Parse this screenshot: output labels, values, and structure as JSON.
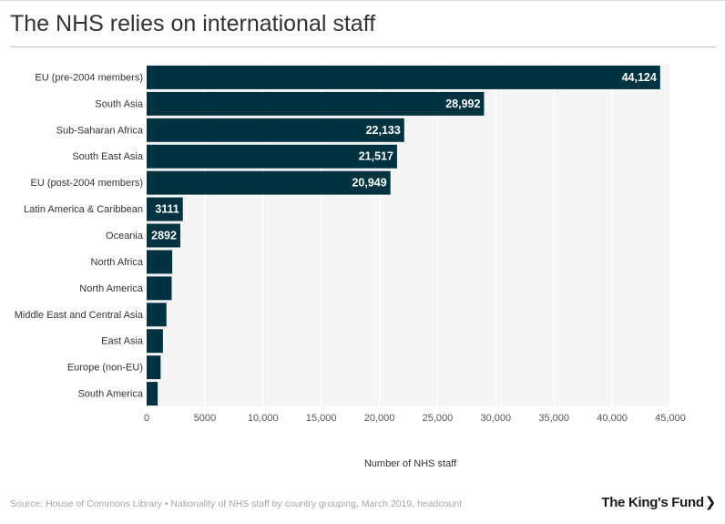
{
  "title": "The NHS relies on international staff",
  "footer": {
    "source": "Source: House of Commons Library • Nationality of NHS staff by country grouping, March 2019, headcount"
  },
  "logo": {
    "text": "The King's Fund",
    "chevron": "❯"
  },
  "colors": {
    "bar": "#00333f",
    "plot_bg": "#f5f5f5",
    "grid": "#ffffff",
    "label_text": "#ffffff"
  },
  "chart_data": {
    "type": "bar",
    "orientation": "horizontal",
    "categories": [
      "EU (pre-2004 members)",
      "South Asia",
      "Sub-Saharan Africa",
      "South East Asia",
      "EU (post-2004 members)",
      "Latin America & Caribbean",
      "Oceania",
      "North Africa",
      "North America",
      "Middle East and Central Asia",
      "East Asia",
      "Europe (non-EU)",
      "South America"
    ],
    "values": [
      44124,
      28992,
      22133,
      21517,
      20949,
      3111,
      2892,
      2200,
      2150,
      1700,
      1400,
      1200,
      950
    ],
    "data_labels": [
      "44,124",
      "28,992",
      "22,133",
      "21,517",
      "20,949",
      "3111",
      "2892",
      "",
      "",
      "",
      "",
      "",
      ""
    ],
    "xlabel": "Number of NHS staff",
    "ylabel": "",
    "xlim": [
      0,
      45000
    ],
    "x_ticks": [
      0,
      5000,
      10000,
      15000,
      20000,
      25000,
      30000,
      35000,
      40000,
      45000
    ],
    "x_tick_labels": [
      "0",
      "5000",
      "10,000",
      "15,000",
      "20,000",
      "25,000",
      "30,000",
      "35,000",
      "40,000",
      "45,000"
    ],
    "grid": true
  }
}
